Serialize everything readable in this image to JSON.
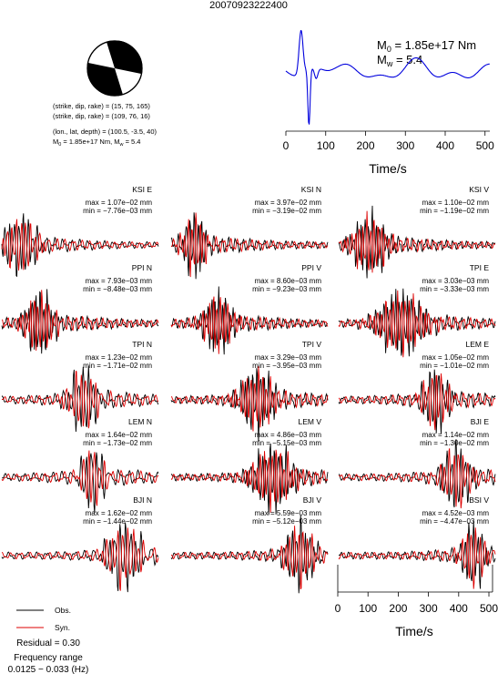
{
  "event_id": "20070923222400",
  "mechanism": {
    "line1": "(strike, dip, rake) = (15, 75, 165)",
    "line2": "(strike, dip, rake) = (109, 76, 16)",
    "line3": "(lon., lat, depth) = (100.5, -3.5, 40)",
    "line4_prefix": "M",
    "line4_sub0": "0",
    "line4_mid": " = 1.85e+17 Nm, M",
    "line4_subw": "w",
    "line4_suffix": " = 5.4",
    "strike": 15,
    "dip": 75,
    "rake": 165
  },
  "stf": {
    "m0_prefix": "M",
    "m0_sub": "0",
    "m0_value": " = 1.85e+17 Nm",
    "mw_prefix": "M",
    "mw_sub": "w",
    "mw_value": " = 5.4",
    "xlabel": "Time/s",
    "ticks": [
      0,
      100,
      200,
      300,
      400,
      500
    ],
    "xlim": [
      0,
      512
    ],
    "color": "#0000dd"
  },
  "panel_axis": {
    "xlabel": "Time/s",
    "ticks": [
      0,
      100,
      200,
      300,
      400,
      500
    ],
    "xlim": [
      0,
      512
    ]
  },
  "legend": {
    "obs_label": "Obs.",
    "syn_label": "Syn.",
    "obs_color": "#000000",
    "syn_color": "#dd0000"
  },
  "footer": {
    "residual": "Residual = 0.30",
    "freq_title": "Frequency range",
    "freq_value": "0.0125 − 0.033 (Hz)"
  },
  "chart_data": {
    "type": "line",
    "title": "20070923222400",
    "xlabel": "Time/s",
    "xlim": [
      0,
      512
    ],
    "series_names": [
      "Obs.",
      "Syn."
    ],
    "panels": [
      {
        "station": "KSI E",
        "max": "max = 1.07e−02 mm",
        "min": "min = −7.76e−03 mm",
        "seed": 1,
        "center": 0.12,
        "width": 0.12,
        "freq": 34,
        "amp": 0.9
      },
      {
        "station": "KSI N",
        "max": "max = 3.97e−02 mm",
        "min": "min = −3.19e−02 mm",
        "seed": 2,
        "center": 0.15,
        "width": 0.08,
        "freq": 40,
        "amp": 1.0
      },
      {
        "station": "KSI V",
        "max": "max = 1.10e−02 mm",
        "min": "min = −1.19e−02 mm",
        "seed": 3,
        "center": 0.2,
        "width": 0.12,
        "freq": 42,
        "amp": 0.95
      },
      {
        "station": "PPI N",
        "max": "max = 7.93e−03 mm",
        "min": "min = −8.48e−03 mm",
        "seed": 4,
        "center": 0.24,
        "width": 0.1,
        "freq": 42,
        "amp": 1.0
      },
      {
        "station": "PPI V",
        "max": "max = 8.60e−03 mm",
        "min": "min = −9.23e−03 mm",
        "seed": 5,
        "center": 0.3,
        "width": 0.1,
        "freq": 44,
        "amp": 0.95
      },
      {
        "station": "TPI E",
        "max": "max = 3.03e−03 mm",
        "min": "min = −3.33e−03 mm",
        "seed": 6,
        "center": 0.4,
        "width": 0.16,
        "freq": 40,
        "amp": 1.0
      },
      {
        "station": "TPI N",
        "max": "max = 1.23e−02 mm",
        "min": "min = −1.71e−02 mm",
        "seed": 7,
        "center": 0.52,
        "width": 0.1,
        "freq": 32,
        "amp": 1.0
      },
      {
        "station": "TPI V",
        "max": "max = 3.29e−03 mm",
        "min": "min = −3.95e−03 mm",
        "seed": 8,
        "center": 0.55,
        "width": 0.12,
        "freq": 40,
        "amp": 1.0
      },
      {
        "station": "LEM E",
        "max": "max = 1.05e−02 mm",
        "min": "min = −1.01e−02 mm",
        "seed": 9,
        "center": 0.62,
        "width": 0.09,
        "freq": 36,
        "amp": 1.0
      },
      {
        "station": "LEM N",
        "max": "max = 1.64e−02 mm",
        "min": "min = −1.73e−02 mm",
        "seed": 10,
        "center": 0.58,
        "width": 0.08,
        "freq": 30,
        "amp": 1.0
      },
      {
        "station": "LEM V",
        "max": "max = 4.86e−03 mm",
        "min": "min = −5.15e−03 mm",
        "seed": 11,
        "center": 0.65,
        "width": 0.14,
        "freq": 40,
        "amp": 1.0
      },
      {
        "station": "BJI E",
        "max": "max = 1.14e−02 mm",
        "min": "min = −1.30e−02 mm",
        "seed": 12,
        "center": 0.75,
        "width": 0.1,
        "freq": 34,
        "amp": 1.0
      },
      {
        "station": "BJI N",
        "max": "max = 1.62e−02 mm",
        "min": "min = −1.44e−02 mm",
        "seed": 13,
        "center": 0.78,
        "width": 0.12,
        "freq": 30,
        "amp": 1.0
      },
      {
        "station": "BJI V",
        "max": "max = 5.59e−03 mm",
        "min": "min = −5.12e−03 mm",
        "seed": 14,
        "center": 0.82,
        "width": 0.1,
        "freq": 36,
        "amp": 1.0
      },
      {
        "station": "BSI V",
        "max": "max = 4.52e−03 mm",
        "min": "min = −4.47e−03 mm",
        "seed": 15,
        "center": 0.86,
        "width": 0.08,
        "freq": 36,
        "amp": 1.0
      }
    ]
  }
}
